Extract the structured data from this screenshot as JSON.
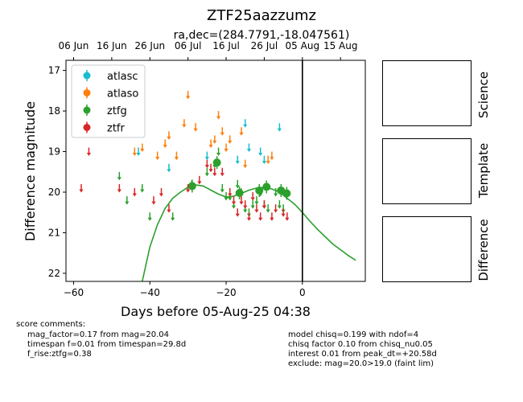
{
  "title": "ZTF25aazzumz",
  "subtitle": "ra,dec=(284.7791,-18.047561)",
  "chart_data": {
    "type": "scatter",
    "xlabel": "Days before 05-Aug-25 04:38",
    "ylabel": "Difference magnitude",
    "xlim": [
      -62,
      16.5
    ],
    "ylim": [
      22.2,
      16.75
    ],
    "x_ticks": [
      "−60",
      "−40",
      "−20",
      "0"
    ],
    "y_ticks": [
      "17",
      "18",
      "19",
      "20",
      "21",
      "22"
    ],
    "top_axis_ticks": [
      "06 Jun",
      "16 Jun",
      "26 Jun",
      "06 Jul",
      "16 Jul",
      "26 Jul",
      "05 Aug",
      "15 Aug"
    ],
    "reference_line_x": 0,
    "legend_position": "upper-left",
    "series": [
      {
        "name": "atlasc",
        "color": "#17becf",
        "detections": [],
        "upper_limits": [
          [
            -43,
            19.0
          ],
          [
            -35,
            19.4
          ],
          [
            -25,
            19.1
          ],
          [
            -17,
            19.2
          ],
          [
            -15,
            18.3
          ],
          [
            -14,
            18.9
          ],
          [
            -11,
            19.0
          ],
          [
            -10,
            19.2
          ],
          [
            -6,
            18.4
          ]
        ]
      },
      {
        "name": "atlaso",
        "color": "#ff7f0e",
        "detections": [],
        "upper_limits": [
          [
            -44,
            19.0
          ],
          [
            -42,
            18.9
          ],
          [
            -38,
            19.1
          ],
          [
            -36,
            18.8
          ],
          [
            -35,
            18.6
          ],
          [
            -33,
            19.1
          ],
          [
            -31,
            18.3
          ],
          [
            -30,
            17.6
          ],
          [
            -28,
            18.4
          ],
          [
            -24,
            18.8
          ],
          [
            -23,
            18.7
          ],
          [
            -22,
            18.1
          ],
          [
            -21,
            18.5
          ],
          [
            -20,
            18.9
          ],
          [
            -19,
            18.7
          ],
          [
            -16,
            18.5
          ],
          [
            -15,
            19.3
          ],
          [
            -9,
            19.2
          ],
          [
            -8,
            19.1
          ]
        ]
      },
      {
        "name": "ztfg",
        "color": "#2ca02c",
        "detections": [
          [
            -28.9,
            19.85
          ],
          [
            -22.4,
            19.27
          ],
          [
            -16.5,
            20.02
          ],
          [
            -11.3,
            19.96
          ],
          [
            -9.4,
            19.87
          ],
          [
            -5.6,
            19.96
          ],
          [
            -4.1,
            20.03
          ]
        ],
        "upper_limits": [
          [
            -48,
            19.6
          ],
          [
            -46,
            20.2
          ],
          [
            -42,
            19.9
          ],
          [
            -40,
            20.6
          ],
          [
            -34,
            20.6
          ],
          [
            -29,
            19.8
          ],
          [
            -25,
            19.5
          ],
          [
            -23,
            19.3
          ],
          [
            -22,
            19.0
          ],
          [
            -21,
            19.9
          ],
          [
            -20,
            20.1
          ],
          [
            -19,
            20.1
          ],
          [
            -18,
            20.3
          ],
          [
            -17,
            19.8
          ],
          [
            -16,
            20.0
          ],
          [
            -15,
            20.4
          ],
          [
            -14,
            20.5
          ],
          [
            -13,
            20.3
          ],
          [
            -12,
            20.2
          ],
          [
            -11,
            20.0
          ],
          [
            -10,
            20.3
          ],
          [
            -9,
            20.4
          ],
          [
            -7,
            20.0
          ],
          [
            -6,
            20.3
          ],
          [
            -5,
            20.4
          ]
        ]
      },
      {
        "name": "ztfr",
        "color": "#d62728",
        "detections": [],
        "upper_limits": [
          [
            -58,
            19.9
          ],
          [
            -56,
            19.0
          ],
          [
            -48,
            19.9
          ],
          [
            -44,
            20.0
          ],
          [
            -39,
            20.2
          ],
          [
            -37,
            20.0
          ],
          [
            -35,
            20.4
          ],
          [
            -30,
            19.9
          ],
          [
            -27,
            19.7
          ],
          [
            -25,
            19.3
          ],
          [
            -24,
            19.4
          ],
          [
            -23,
            19.5
          ],
          [
            -21,
            19.5
          ],
          [
            -19,
            20.0
          ],
          [
            -18,
            20.2
          ],
          [
            -17,
            20.5
          ],
          [
            -16,
            20.2
          ],
          [
            -15,
            20.3
          ],
          [
            -14,
            20.6
          ],
          [
            -13,
            20.1
          ],
          [
            -12,
            20.4
          ],
          [
            -11,
            20.6
          ],
          [
            -10,
            20.3
          ],
          [
            -8,
            20.6
          ],
          [
            -7,
            20.4
          ],
          [
            -5,
            20.5
          ],
          [
            -4,
            20.6
          ]
        ]
      }
    ],
    "model_curve": {
      "color": "#2ca02c",
      "x": [
        -42,
        -40,
        -38,
        -36,
        -34,
        -32,
        -30,
        -28,
        -26,
        -24,
        -22,
        -20,
        -18,
        -16,
        -14,
        -12,
        -10,
        -8,
        -6,
        -4,
        -2,
        0,
        2,
        4,
        6,
        8,
        10,
        12,
        14
      ],
      "y": [
        22.2,
        21.35,
        20.8,
        20.4,
        20.15,
        20.0,
        19.88,
        19.82,
        19.85,
        19.95,
        20.05,
        20.12,
        20.1,
        20.03,
        19.95,
        19.9,
        19.88,
        19.92,
        20.0,
        20.15,
        20.3,
        20.5,
        20.72,
        20.92,
        21.1,
        21.28,
        21.42,
        21.56,
        21.68
      ]
    }
  },
  "score_comments": {
    "heading": "score comments:",
    "lines": [
      "mag_factor=0.17 from mag=20.04",
      "timespan f=0.01 from timespan=29.8d",
      "f_rise:ztfg=0.38"
    ]
  },
  "model_comments": {
    "lines": [
      "model chisq=0.199 with ndof=4",
      "chisq factor 0.10 from chisq_nu0.05",
      "interest 0.01 from peak_dt=+20.58d",
      "exclude: mag=20.0>19.0 (faint lim)"
    ]
  },
  "stamps": {
    "science_label": "Science",
    "template_label": "Template",
    "difference_label": "Difference"
  }
}
